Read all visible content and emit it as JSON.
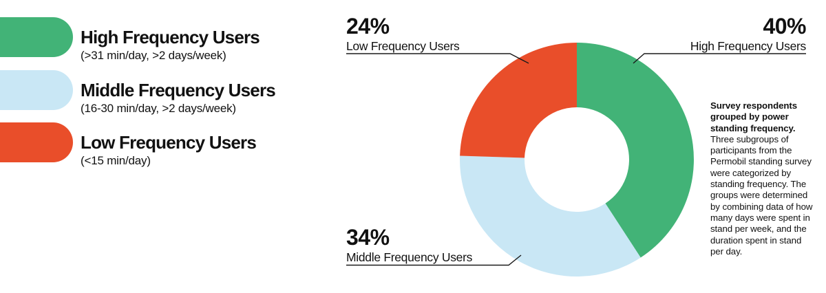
{
  "chart_data": {
    "type": "pie",
    "variant": "donut",
    "categories": [
      "High Frequency Users",
      "Middle Frequency Users",
      "Low Frequency Users"
    ],
    "keys": [
      "high",
      "middle",
      "low"
    ],
    "values": [
      40,
      34,
      24
    ],
    "unit": "%",
    "colors": [
      "#42B377",
      "#C9E7F5",
      "#E94E2A"
    ],
    "start_angle_deg": 0,
    "direction": "clockwise",
    "inner_radius_ratio": 0.447,
    "legend_position": "left",
    "callouts": {
      "high": {
        "value": "40%",
        "label": "High Frequency Users"
      },
      "middle": {
        "value": "34%",
        "label": "Middle Frequency Users"
      },
      "low": {
        "value": "24%",
        "label": "Low Frequency Users"
      }
    }
  },
  "legend": {
    "items": [
      {
        "key": "high",
        "label": "High Frequency Users",
        "detail": "(>31 min/day, >2 days/week)",
        "color": "#42B377"
      },
      {
        "key": "middle",
        "label": "Middle Frequency Users",
        "detail": "(16-30 min/day, >2 days/week)",
        "color": "#C9E7F5"
      },
      {
        "key": "low",
        "label": "Low Frequency Users",
        "detail": "(<15 min/day)",
        "color": "#E94E2A"
      }
    ]
  },
  "annotation": {
    "lead": "Survey respondents grouped by power standing frequency.",
    "body": "Three subgroups of participants from the Permobil standing survey were categorized by standing frequency. The groups were determined by combining data of how many days were spent in stand per week, and the duration spent in stand per day."
  },
  "colors": {
    "background": "#FFFFFF",
    "text": "#111111",
    "leader_line": "#1A1A1A"
  }
}
